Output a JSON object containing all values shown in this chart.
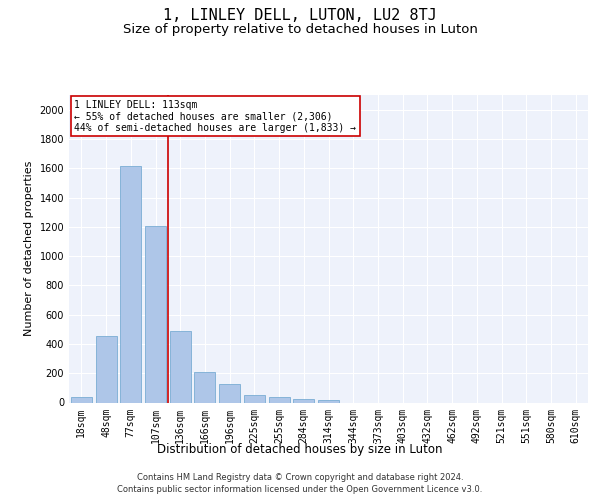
{
  "title": "1, LINLEY DELL, LUTON, LU2 8TJ",
  "subtitle": "Size of property relative to detached houses in Luton",
  "xlabel": "Distribution of detached houses by size in Luton",
  "ylabel": "Number of detached properties",
  "footer_line1": "Contains HM Land Registry data © Crown copyright and database right 2024.",
  "footer_line2": "Contains public sector information licensed under the Open Government Licence v3.0.",
  "categories": [
    "18sqm",
    "48sqm",
    "77sqm",
    "107sqm",
    "136sqm",
    "166sqm",
    "196sqm",
    "225sqm",
    "255sqm",
    "284sqm",
    "314sqm",
    "344sqm",
    "373sqm",
    "403sqm",
    "432sqm",
    "462sqm",
    "492sqm",
    "521sqm",
    "551sqm",
    "580sqm",
    "610sqm"
  ],
  "values": [
    40,
    455,
    1615,
    1205,
    490,
    210,
    125,
    50,
    40,
    25,
    15,
    0,
    0,
    0,
    0,
    0,
    0,
    0,
    0,
    0,
    0
  ],
  "bar_color": "#aec6e8",
  "bar_edge_color": "#7aadd4",
  "vline_x": 3.5,
  "vline_color": "#cc0000",
  "annotation_text": "1 LINLEY DELL: 113sqm\n← 55% of detached houses are smaller (2,306)\n44% of semi-detached houses are larger (1,833) →",
  "annotation_box_color": "#ffffff",
  "annotation_box_edge_color": "#cc0000",
  "ylim": [
    0,
    2100
  ],
  "yticks": [
    0,
    200,
    400,
    600,
    800,
    1000,
    1200,
    1400,
    1600,
    1800,
    2000
  ],
  "bg_color": "#eef2fb",
  "title_fontsize": 11,
  "subtitle_fontsize": 9.5,
  "tick_fontsize": 7,
  "ylabel_fontsize": 8,
  "xlabel_fontsize": 8.5,
  "footer_fontsize": 6,
  "annotation_fontsize": 7
}
